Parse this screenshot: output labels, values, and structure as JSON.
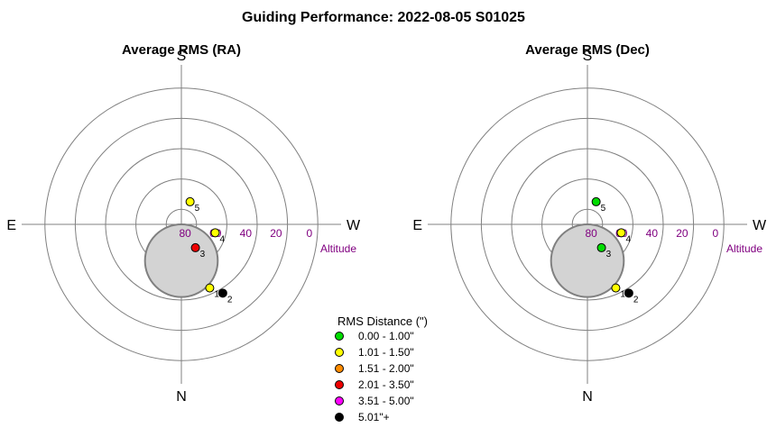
{
  "title": "Guiding Performance: 2022-08-05 S01025",
  "directions": {
    "south": "S",
    "north": "N",
    "east": "E",
    "west": "W"
  },
  "altitude_label": "Altitude",
  "colors": {
    "ring": "#808080",
    "altitude_text": "#800080",
    "blocked_fill": "#d3d3d3",
    "blocked_stroke": "#808080"
  },
  "legend": {
    "title": "RMS Distance (\")",
    "items": [
      {
        "label": "0.00 - 1.00\"",
        "color": "#00dd00"
      },
      {
        "label": "1.01 - 1.50\"",
        "color": "#ffff00"
      },
      {
        "label": "1.51 - 2.00\"",
        "color": "#ff8c00"
      },
      {
        "label": "2.01 - 3.50\"",
        "color": "#ee0000"
      },
      {
        "label": "3.51 - 5.00\"",
        "color": "#ff00ff"
      },
      {
        "label": "5.01\"+",
        "color": "#000000"
      }
    ]
  },
  "chart_data": [
    {
      "type": "scatter",
      "projection": "polar-alt-az",
      "title": "Average RMS (RA)",
      "altitude_ticks": [
        "80",
        "60",
        "40",
        "20",
        "0"
      ],
      "altitude_rings": [
        80,
        60,
        40,
        20,
        0
      ],
      "blocked_region": {
        "center_azimuth": 0,
        "center_altitude": 66,
        "radius_deg": 24
      },
      "points": [
        {
          "label": "1",
          "azimuth": 24,
          "altitude": 44,
          "color": "#ffff00"
        },
        {
          "label": "2",
          "azimuth": 31,
          "altitude": 37,
          "color": "#000000"
        },
        {
          "label": "3",
          "azimuth": 31,
          "altitude": 72,
          "color": "#ee0000"
        },
        {
          "label": "4",
          "azimuth": 76,
          "altitude": 67,
          "color": "#ffff00"
        },
        {
          "label": "5",
          "azimuth": 159,
          "altitude": 74,
          "color": "#ffff00"
        }
      ]
    },
    {
      "type": "scatter",
      "projection": "polar-alt-az",
      "title": "Average RMS (Dec)",
      "altitude_ticks": [
        "80",
        "60",
        "40",
        "20",
        "0"
      ],
      "altitude_rings": [
        80,
        60,
        40,
        20,
        0
      ],
      "blocked_region": {
        "center_azimuth": 0,
        "center_altitude": 66,
        "radius_deg": 24
      },
      "points": [
        {
          "label": "1",
          "azimuth": 24,
          "altitude": 44,
          "color": "#ffff00"
        },
        {
          "label": "2",
          "azimuth": 31,
          "altitude": 37,
          "color": "#000000"
        },
        {
          "label": "3",
          "azimuth": 31,
          "altitude": 72,
          "color": "#00dd00"
        },
        {
          "label": "4",
          "azimuth": 76,
          "altitude": 67,
          "color": "#ffff00"
        },
        {
          "label": "5",
          "azimuth": 159,
          "altitude": 74,
          "color": "#00dd00"
        }
      ]
    }
  ]
}
